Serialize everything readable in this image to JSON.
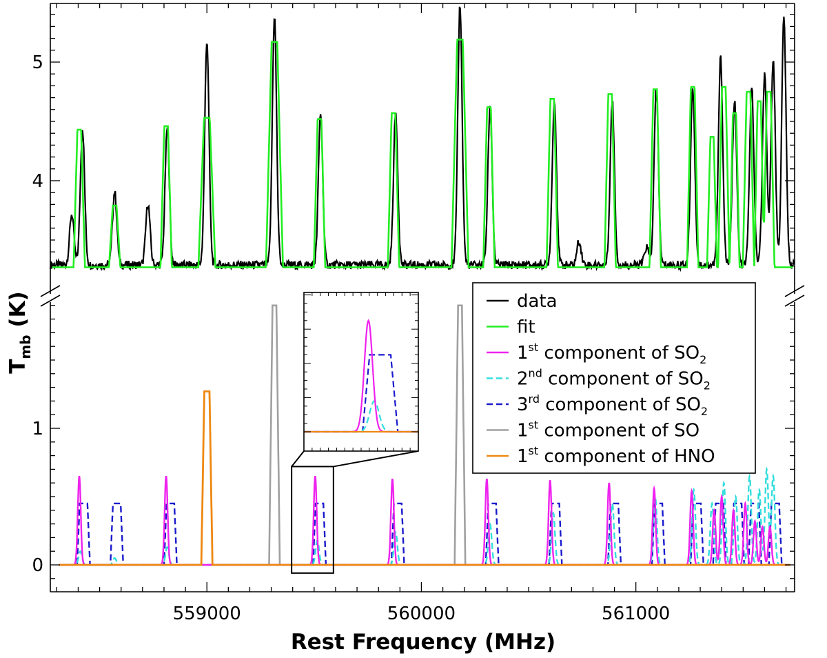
{
  "chart_data": {
    "type": "line",
    "xlabel": "Rest Frequency (MHz)",
    "ylabel_main": "T",
    "ylabel_sub": "mb",
    "ylabel_unit": " (K)",
    "xlim": [
      558270,
      561740
    ],
    "x_ticks": [
      559000,
      560000,
      561000
    ],
    "x_tick_labels": [
      "559000",
      "560000",
      "561000"
    ],
    "upper_panel": {
      "ylim": [
        3.0,
        5.5
      ],
      "y_ticks": [
        4,
        5
      ],
      "y_tick_labels": [
        "4",
        "5"
      ]
    },
    "lower_panel": {
      "ylim": [
        -0.2,
        2.0
      ],
      "y_ticks": [
        0,
        1
      ],
      "y_tick_labels": [
        "0",
        "1"
      ]
    },
    "axis_break": true,
    "legend": {
      "placement": "center-right",
      "entries": [
        {
          "key": "data",
          "pre": "data",
          "sup": "",
          "mid": "",
          "sub": ""
        },
        {
          "key": "fit",
          "pre": "fit",
          "sup": "",
          "mid": "",
          "sub": ""
        },
        {
          "key": "so2_1",
          "pre": "1",
          "sup": "st",
          "mid": " component of SO",
          "sub": "2"
        },
        {
          "key": "so2_2",
          "pre": "2",
          "sup": "nd",
          "mid": " component of SO",
          "sub": "2"
        },
        {
          "key": "so2_3",
          "pre": "3",
          "sup": "rd",
          "mid": " component of SO",
          "sub": "2"
        },
        {
          "key": "so_1",
          "pre": "1",
          "sup": "st",
          "mid": " component of SO",
          "sub": ""
        },
        {
          "key": "hno_1",
          "pre": "1",
          "sup": "st",
          "mid": " component of HNO",
          "sub": ""
        }
      ]
    },
    "styles": {
      "data": {
        "color": "#000000",
        "dash": ""
      },
      "fit": {
        "color": "#22ee22",
        "dash": ""
      },
      "so2_1": {
        "color": "#ee22ee",
        "dash": ""
      },
      "so2_2": {
        "color": "#33dddd",
        "dash": "9,5"
      },
      "so2_3": {
        "color": "#1a1acc",
        "dash": "9,5"
      },
      "so_1": {
        "color": "#a0a0a0",
        "dash": ""
      },
      "hno_1": {
        "color": "#ee8811",
        "dash": ""
      }
    },
    "upper_series": {
      "baseline": 3.29,
      "data_lines": [
        {
          "x": 558370,
          "h": 0.43
        },
        {
          "x": 558420,
          "h": 1.15
        },
        {
          "x": 558570,
          "h": 0.62
        },
        {
          "x": 558725,
          "h": 0.52
        },
        {
          "x": 558815,
          "h": 1.15
        },
        {
          "x": 559000,
          "h": 1.9
        },
        {
          "x": 559315,
          "h": 2.1
        },
        {
          "x": 559530,
          "h": 1.28
        },
        {
          "x": 559880,
          "h": 1.28
        },
        {
          "x": 560180,
          "h": 2.2
        },
        {
          "x": 560320,
          "h": 1.32
        },
        {
          "x": 560620,
          "h": 1.38
        },
        {
          "x": 560735,
          "h": 0.2
        },
        {
          "x": 560890,
          "h": 1.38
        },
        {
          "x": 561050,
          "h": 0.15
        },
        {
          "x": 561095,
          "h": 1.48
        },
        {
          "x": 561265,
          "h": 1.5
        },
        {
          "x": 561395,
          "h": 1.75
        },
        {
          "x": 561460,
          "h": 1.4
        },
        {
          "x": 561540,
          "h": 1.5
        },
        {
          "x": 561600,
          "h": 1.6
        },
        {
          "x": 561640,
          "h": 1.75
        },
        {
          "x": 561690,
          "h": 2.1
        }
      ],
      "fit_lines": [
        {
          "x": 558405,
          "h": 1.16,
          "w": 16
        },
        {
          "x": 558570,
          "h": 0.52,
          "w": 16
        },
        {
          "x": 558810,
          "h": 1.19,
          "w": 16
        },
        {
          "x": 559000,
          "h": 1.26,
          "w": 24
        },
        {
          "x": 559315,
          "h": 1.9,
          "w": 24
        },
        {
          "x": 559525,
          "h": 1.25,
          "w": 16
        },
        {
          "x": 559870,
          "h": 1.3,
          "w": 16
        },
        {
          "x": 560180,
          "h": 1.92,
          "w": 24
        },
        {
          "x": 560315,
          "h": 1.35,
          "w": 16
        },
        {
          "x": 560610,
          "h": 1.42,
          "w": 16
        },
        {
          "x": 560880,
          "h": 1.46,
          "w": 16
        },
        {
          "x": 561090,
          "h": 1.5,
          "w": 16
        },
        {
          "x": 561265,
          "h": 1.52,
          "w": 16
        },
        {
          "x": 561355,
          "h": 1.1,
          "w": 14
        },
        {
          "x": 561410,
          "h": 1.52,
          "w": 16
        },
        {
          "x": 561460,
          "h": 1.3,
          "w": 14
        },
        {
          "x": 561525,
          "h": 1.48,
          "w": 16
        },
        {
          "x": 561575,
          "h": 1.4,
          "w": 14
        },
        {
          "x": 561620,
          "h": 1.48,
          "w": 16
        }
      ]
    },
    "lower_series": {
      "so2_1": [
        {
          "x": 558405,
          "h": 0.65
        },
        {
          "x": 558810,
          "h": 0.65
        },
        {
          "x": 559505,
          "h": 0.65
        },
        {
          "x": 559865,
          "h": 0.63
        },
        {
          "x": 560305,
          "h": 0.63
        },
        {
          "x": 560600,
          "h": 0.62
        },
        {
          "x": 560875,
          "h": 0.6
        },
        {
          "x": 561085,
          "h": 0.56
        },
        {
          "x": 561260,
          "h": 0.54
        },
        {
          "x": 561365,
          "h": 0.4
        },
        {
          "x": 561400,
          "h": 0.5
        },
        {
          "x": 561455,
          "h": 0.4
        },
        {
          "x": 561510,
          "h": 0.45
        },
        {
          "x": 561555,
          "h": 0.32
        },
        {
          "x": 561590,
          "h": 0.28
        },
        {
          "x": 561625,
          "h": 0.28
        }
      ],
      "so2_2": [
        {
          "x": 558410,
          "h": 0.1
        },
        {
          "x": 558570,
          "h": 0.05
        },
        {
          "x": 558815,
          "h": 0.13
        },
        {
          "x": 559515,
          "h": 0.18
        },
        {
          "x": 559880,
          "h": 0.24
        },
        {
          "x": 560320,
          "h": 0.3
        },
        {
          "x": 560615,
          "h": 0.38
        },
        {
          "x": 560890,
          "h": 0.45
        },
        {
          "x": 561090,
          "h": 0.5
        },
        {
          "x": 561270,
          "h": 0.55
        },
        {
          "x": 561355,
          "h": 0.45
        },
        {
          "x": 561410,
          "h": 0.6
        },
        {
          "x": 561465,
          "h": 0.5
        },
        {
          "x": 561530,
          "h": 0.65
        },
        {
          "x": 561575,
          "h": 0.55
        },
        {
          "x": 561610,
          "h": 0.7
        },
        {
          "x": 561640,
          "h": 0.65
        }
      ],
      "so2_3": [
        {
          "x": 558425,
          "h": 0.45
        },
        {
          "x": 558580,
          "h": 0.45
        },
        {
          "x": 558830,
          "h": 0.45
        },
        {
          "x": 559525,
          "h": 0.45
        },
        {
          "x": 559890,
          "h": 0.45
        },
        {
          "x": 560330,
          "h": 0.45
        },
        {
          "x": 560625,
          "h": 0.45
        },
        {
          "x": 560900,
          "h": 0.45
        },
        {
          "x": 561105,
          "h": 0.45
        },
        {
          "x": 561285,
          "h": 0.45
        },
        {
          "x": 561390,
          "h": 0.45
        },
        {
          "x": 561475,
          "h": 0.45
        },
        {
          "x": 561555,
          "h": 0.45
        },
        {
          "x": 561650,
          "h": 0.45
        }
      ],
      "so_1": [
        {
          "x": 559315,
          "h": 1.9
        },
        {
          "x": 560180,
          "h": 1.9
        }
      ],
      "hno_1": [
        {
          "x": 559000,
          "h": 1.27
        }
      ]
    },
    "zoom_box": {
      "x0": 559395,
      "x1": 559590,
      "y0": -0.06,
      "y1": 0.72
    }
  }
}
